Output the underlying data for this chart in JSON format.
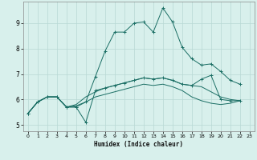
{
  "xlabel": "Humidex (Indice chaleur)",
  "background_color": "#d8f0ec",
  "grid_color": "#b8d8d4",
  "line_color": "#1a6e64",
  "xlim": [
    -0.5,
    23.5
  ],
  "ylim": [
    4.75,
    9.85
  ],
  "xticks": [
    0,
    1,
    2,
    3,
    4,
    5,
    6,
    7,
    8,
    9,
    10,
    11,
    12,
    13,
    14,
    15,
    16,
    17,
    18,
    19,
    20,
    21,
    22,
    23
  ],
  "yticks": [
    5,
    6,
    7,
    8,
    9
  ],
  "series": [
    {
      "x": [
        0,
        1,
        2,
        3,
        4,
        5,
        6,
        7,
        8,
        9,
        10,
        11,
        12,
        13,
        14,
        15,
        16,
        17,
        18,
        19,
        20,
        21,
        22
      ],
      "y": [
        5.45,
        5.9,
        6.1,
        6.1,
        5.7,
        5.7,
        5.9,
        6.9,
        7.9,
        8.65,
        8.65,
        9.0,
        9.05,
        8.65,
        9.6,
        9.05,
        8.05,
        7.6,
        7.35,
        7.4,
        7.1,
        6.75,
        6.6
      ],
      "marker": true
    },
    {
      "x": [
        0,
        1,
        2,
        3,
        4,
        5,
        6,
        7,
        8,
        9,
        10,
        11,
        12,
        13,
        14,
        15,
        16,
        17,
        18,
        19,
        20,
        21,
        22
      ],
      "y": [
        5.45,
        5.9,
        6.1,
        6.1,
        5.7,
        5.7,
        5.1,
        6.35,
        6.45,
        6.55,
        6.65,
        6.75,
        6.85,
        6.8,
        6.85,
        6.75,
        6.6,
        6.55,
        6.8,
        6.95,
        6.0,
        5.95,
        5.95
      ],
      "marker": true
    },
    {
      "x": [
        0,
        1,
        2,
        3,
        4,
        5,
        6,
        7,
        8,
        9,
        10,
        11,
        12,
        13,
        14,
        15,
        16,
        17,
        18,
        19,
        20,
        21,
        22
      ],
      "y": [
        5.45,
        5.9,
        6.1,
        6.1,
        5.7,
        5.8,
        6.1,
        6.3,
        6.45,
        6.55,
        6.65,
        6.75,
        6.85,
        6.8,
        6.85,
        6.75,
        6.6,
        6.55,
        6.5,
        6.3,
        6.1,
        6.0,
        5.95
      ],
      "marker": false
    },
    {
      "x": [
        0,
        1,
        2,
        3,
        4,
        5,
        6,
        7,
        8,
        9,
        10,
        11,
        12,
        13,
        14,
        15,
        16,
        17,
        18,
        19,
        20,
        21,
        22
      ],
      "y": [
        5.45,
        5.9,
        6.1,
        6.1,
        5.7,
        5.75,
        5.9,
        6.1,
        6.2,
        6.3,
        6.4,
        6.5,
        6.6,
        6.55,
        6.6,
        6.5,
        6.35,
        6.1,
        5.95,
        5.85,
        5.8,
        5.85,
        5.95
      ],
      "marker": false
    }
  ]
}
